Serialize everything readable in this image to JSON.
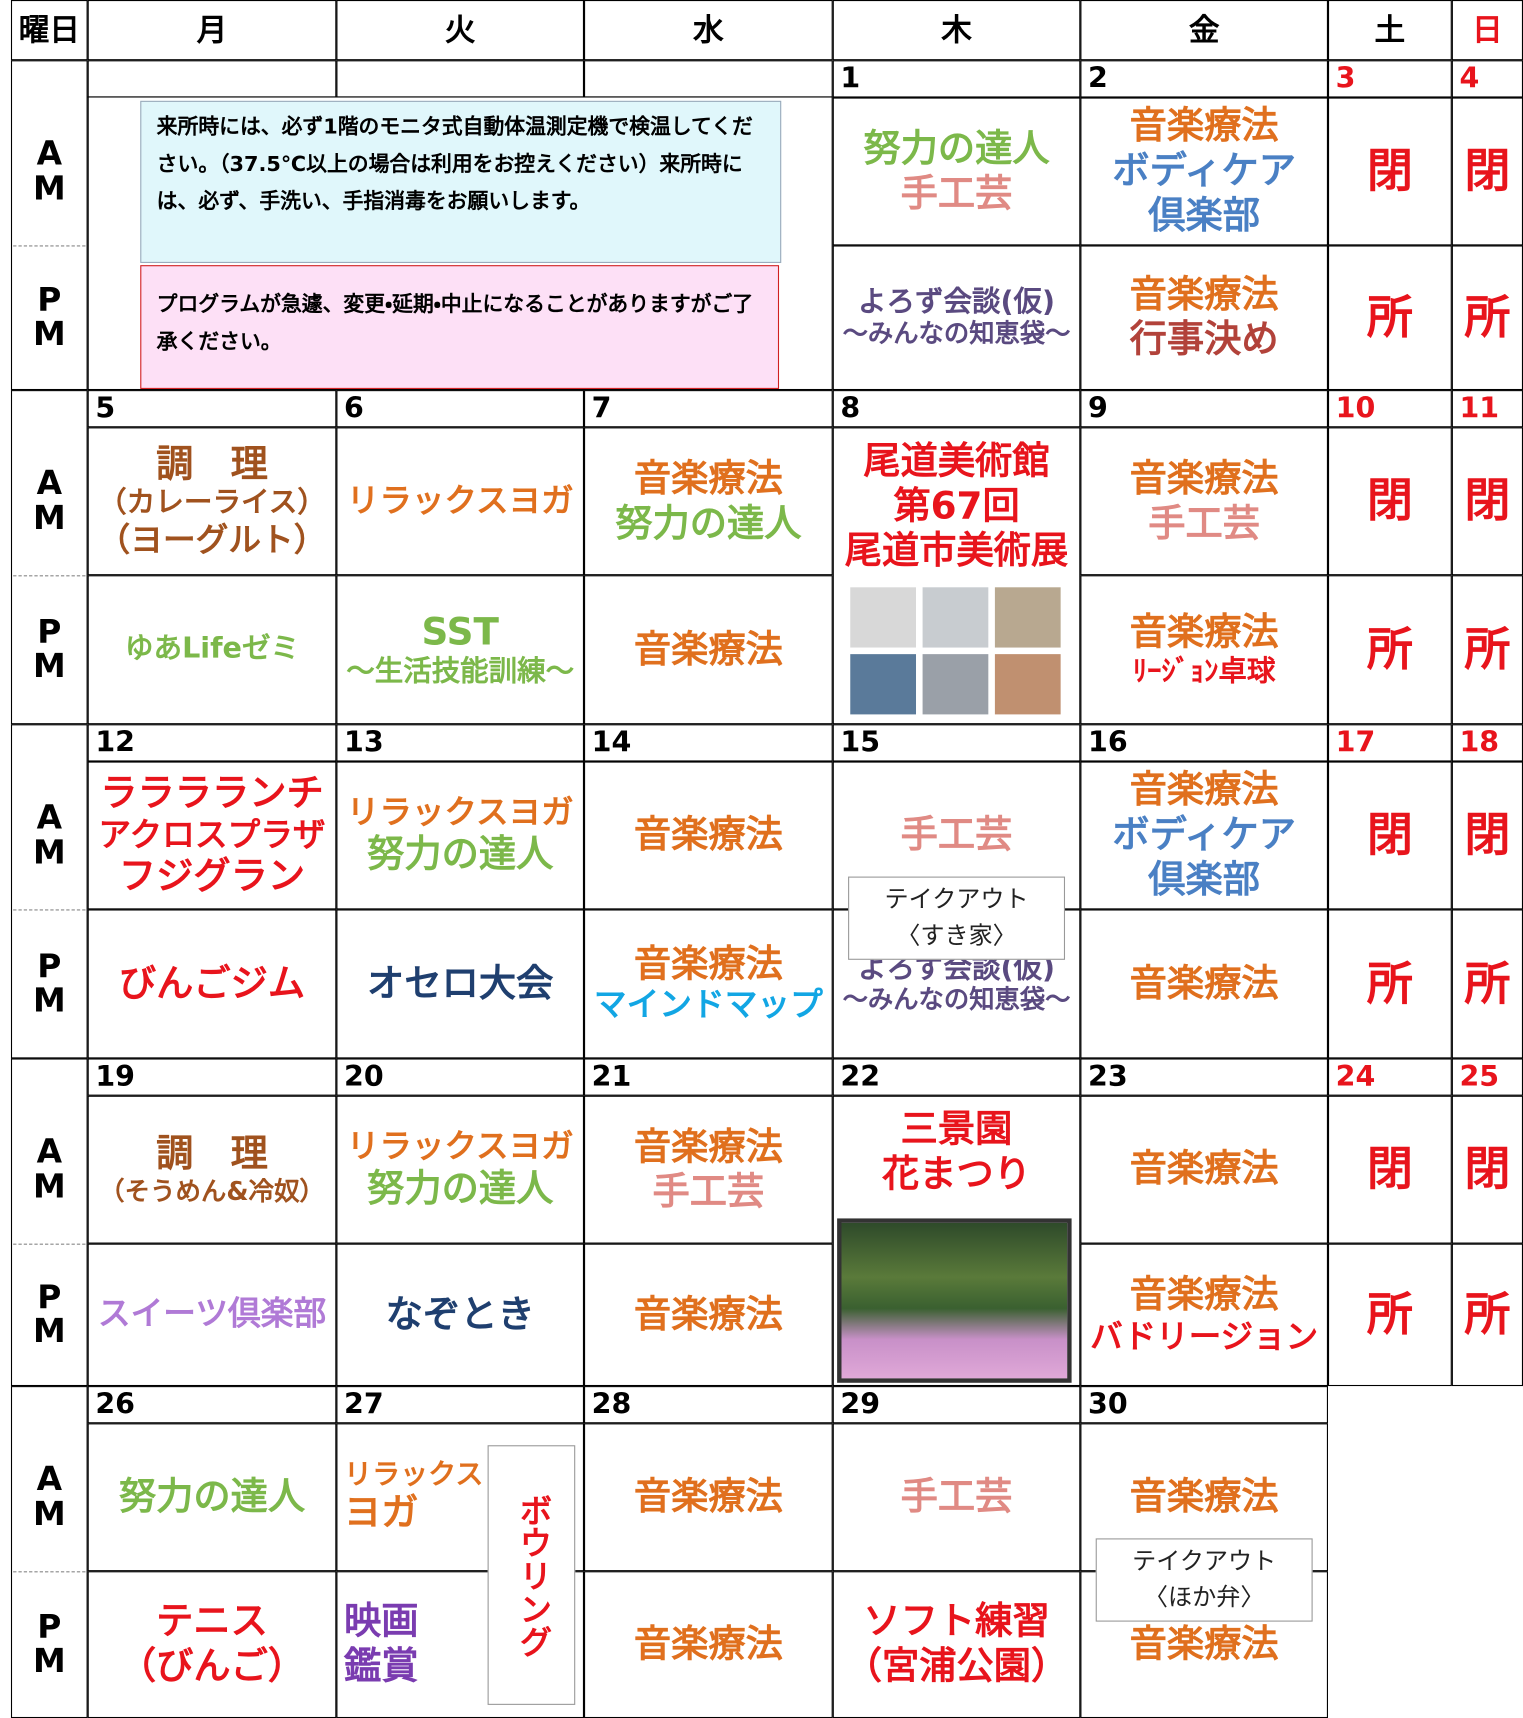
{
  "header": {
    "weekday_label": "曜日",
    "days": [
      "月",
      "火",
      "水",
      "木",
      "金",
      "土",
      "日"
    ]
  },
  "am_label": [
    "A",
    "M"
  ],
  "pm_label": [
    "P",
    "M"
  ],
  "notices": [
    "来所時には、必ず1階のモニタ式自動体温測定機で検温してください。（37.5℃以上の場合は利用をお控えください）来所時には、必ず、手洗い、手指消毒をお願いします。",
    "プログラムが急遽、変更・延期・中止になることがありますがご了承ください。"
  ],
  "weeks": [
    {
      "dates": [
        null,
        null,
        null,
        "1",
        "2",
        "3",
        "4"
      ],
      "am": [
        null,
        null,
        null,
        {
          "lines": [
            {
              "text": "努力の達人",
              "color": "#7cb84a"
            },
            {
              "text": "手工芸",
              "color": "#e08a84"
            }
          ]
        },
        {
          "lines": [
            {
              "text": "音楽療法",
              "color": "#e0701e"
            },
            {
              "text": "ボディケア",
              "color": "#4a80c4"
            },
            {
              "text": "倶楽部",
              "color": "#4a80c4"
            }
          ]
        },
        {
          "lines": [
            {
              "text": "閉",
              "color": "#e8141c"
            }
          ]
        },
        {
          "lines": [
            {
              "text": "閉",
              "color": "#e8141c"
            }
          ]
        }
      ],
      "pm": [
        null,
        null,
        null,
        {
          "lines": [
            {
              "text": "よろず会談(仮)",
              "color": "#5a4a80"
            },
            {
              "text": "〜みんなの知恵袋〜",
              "color": "#5a4a80"
            }
          ]
        },
        {
          "lines": [
            {
              "text": "音楽療法",
              "color": "#e0701e"
            },
            {
              "text": "行事決め",
              "color": "#b2423a"
            }
          ]
        },
        {
          "lines": [
            {
              "text": "所",
              "color": "#e8141c"
            }
          ]
        },
        {
          "lines": [
            {
              "text": "所",
              "color": "#e8141c"
            }
          ]
        }
      ]
    },
    {
      "dates": [
        "5",
        "6",
        "7",
        "8",
        "9",
        "10",
        "11"
      ],
      "am": [
        {
          "lines": [
            {
              "text": "調　理",
              "color": "#a0521e"
            },
            {
              "text": "（カレーライス）",
              "color": "#a0521e"
            },
            {
              "text": "（ヨーグルト）",
              "color": "#a0521e"
            }
          ]
        },
        {
          "lines": [
            {
              "text": "リラックスヨガ",
              "color": "#e0701e"
            }
          ]
        },
        {
          "lines": [
            {
              "text": "音楽療法",
              "color": "#e0701e"
            },
            {
              "text": "努力の達人",
              "color": "#7cb84a"
            }
          ]
        },
        {
          "lines": [
            {
              "text": "尾道美術館",
              "color": "#e8141c"
            },
            {
              "text": "第67回",
              "color": "#e8141c"
            },
            {
              "text": "尾道市美術展",
              "color": "#e8141c"
            }
          ]
        },
        {
          "lines": [
            {
              "text": "音楽療法",
              "color": "#e0701e"
            },
            {
              "text": "手工芸",
              "color": "#e08a84"
            }
          ]
        },
        {
          "lines": [
            {
              "text": "閉",
              "color": "#e8141c"
            }
          ]
        },
        {
          "lines": [
            {
              "text": "閉",
              "color": "#e8141c"
            }
          ]
        }
      ],
      "pm": [
        {
          "lines": [
            {
              "text": "ゆあLifeゼミ",
              "color": "#7cb84a"
            }
          ]
        },
        {
          "lines": [
            {
              "text": "SST",
              "color": "#7cb84a"
            },
            {
              "text": "〜生活技能訓練〜",
              "color": "#7cb84a"
            }
          ]
        },
        {
          "lines": [
            {
              "text": "音楽療法",
              "color": "#e0701e"
            }
          ]
        },
        null,
        {
          "lines": [
            {
              "text": "音楽療法",
              "color": "#e0701e"
            },
            {
              "text": "ﾘｰｼﾞｮﾝ卓球",
              "color": "#e8141c"
            }
          ]
        },
        {
          "lines": [
            {
              "text": "所",
              "color": "#e8141c"
            }
          ]
        },
        {
          "lines": [
            {
              "text": "所",
              "color": "#e8141c"
            }
          ]
        }
      ]
    },
    {
      "dates": [
        "12",
        "13",
        "14",
        "15",
        "16",
        "17",
        "18"
      ],
      "am": [
        {
          "lines": [
            {
              "text": "ラララランチ",
              "color": "#e8141c"
            },
            {
              "text": "アクロスプラザ",
              "color": "#e8141c"
            },
            {
              "text": "フジグラン",
              "color": "#e8141c"
            }
          ]
        },
        {
          "lines": [
            {
              "text": "リラックスヨガ",
              "color": "#e0701e"
            },
            {
              "text": "努力の達人",
              "color": "#7cb84a"
            }
          ]
        },
        {
          "lines": [
            {
              "text": "音楽療法",
              "color": "#e0701e"
            }
          ]
        },
        {
          "lines": [
            {
              "text": "手工芸",
              "color": "#e08a84"
            }
          ],
          "takeaway": [
            "テイクアウト",
            "〈すき家〉"
          ]
        },
        {
          "lines": [
            {
              "text": "音楽療法",
              "color": "#e0701e"
            },
            {
              "text": "ボディケア",
              "color": "#4a80c4"
            },
            {
              "text": "倶楽部",
              "color": "#4a80c4"
            }
          ]
        },
        {
          "lines": [
            {
              "text": "閉",
              "color": "#e8141c"
            }
          ]
        },
        {
          "lines": [
            {
              "text": "閉",
              "color": "#e8141c"
            }
          ]
        }
      ],
      "pm": [
        {
          "lines": [
            {
              "text": "びんごジム",
              "color": "#e8141c"
            }
          ]
        },
        {
          "lines": [
            {
              "text": "オセロ大会",
              "color": "#1f3f6f"
            }
          ]
        },
        {
          "lines": [
            {
              "text": "音楽療法",
              "color": "#e0701e"
            },
            {
              "text": "マインドマップ",
              "color": "#12a6e4"
            }
          ]
        },
        {
          "lines": [
            {
              "text": "よろず会談(仮)",
              "color": "#5a4a80"
            },
            {
              "text": "〜みんなの知恵袋〜",
              "color": "#5a4a80"
            }
          ]
        },
        {
          "lines": [
            {
              "text": "音楽療法",
              "color": "#e0701e"
            }
          ]
        },
        {
          "lines": [
            {
              "text": "所",
              "color": "#e8141c"
            }
          ]
        },
        {
          "lines": [
            {
              "text": "所",
              "color": "#e8141c"
            }
          ]
        }
      ]
    },
    {
      "dates": [
        "19",
        "20",
        "21",
        "22",
        "23",
        "24",
        "25"
      ],
      "am": [
        {
          "lines": [
            {
              "text": "調　理",
              "color": "#a0521e"
            },
            {
              "text": "（そうめん&冷奴）",
              "color": "#a0521e"
            }
          ]
        },
        {
          "lines": [
            {
              "text": "リラックスヨガ",
              "color": "#e0701e"
            },
            {
              "text": "努力の達人",
              "color": "#7cb84a"
            }
          ]
        },
        {
          "lines": [
            {
              "text": "音楽療法",
              "color": "#e0701e"
            },
            {
              "text": "手工芸",
              "color": "#e08a84"
            }
          ]
        },
        {
          "lines": [
            {
              "text": "三景園",
              "color": "#e8141c"
            },
            {
              "text": "花まつり",
              "color": "#e8141c"
            }
          ]
        },
        {
          "lines": [
            {
              "text": "音楽療法",
              "color": "#e0701e"
            }
          ]
        },
        {
          "lines": [
            {
              "text": "閉",
              "color": "#e8141c"
            }
          ]
        },
        {
          "lines": [
            {
              "text": "閉",
              "color": "#e8141c"
            }
          ]
        }
      ],
      "pm": [
        {
          "lines": [
            {
              "text": "スイーツ倶楽部",
              "color": "#b07ad6"
            }
          ]
        },
        {
          "lines": [
            {
              "text": "なぞとき",
              "color": "#1f3f6f"
            }
          ]
        },
        {
          "lines": [
            {
              "text": "音楽療法",
              "color": "#e0701e"
            }
          ]
        },
        null,
        {
          "lines": [
            {
              "text": "音楽療法",
              "color": "#e0701e"
            },
            {
              "text": "バドリージョン",
              "color": "#e8141c"
            }
          ]
        },
        {
          "lines": [
            {
              "text": "所",
              "color": "#e8141c"
            }
          ]
        },
        {
          "lines": [
            {
              "text": "所",
              "color": "#e8141c"
            }
          ]
        }
      ]
    },
    {
      "dates": [
        "26",
        "27",
        "28",
        "29",
        "30",
        null,
        null
      ],
      "am": [
        {
          "lines": [
            {
              "text": "努力の達人",
              "color": "#7cb84a"
            }
          ]
        },
        {
          "lines": [
            {
              "text": "リラックス",
              "color": "#e0701e"
            },
            {
              "text": "ヨガ",
              "color": "#e0701e"
            }
          ],
          "bowling": "ボウリング"
        },
        {
          "lines": [
            {
              "text": "音楽療法",
              "color": "#e0701e"
            }
          ]
        },
        {
          "lines": [
            {
              "text": "手工芸",
              "color": "#e08a84"
            }
          ]
        },
        {
          "lines": [
            {
              "text": "音楽療法",
              "color": "#e0701e"
            }
          ],
          "takeaway": [
            "テイクアウト",
            "〈ほか弁〉"
          ]
        },
        null,
        null
      ],
      "pm": [
        {
          "lines": [
            {
              "text": "テニス",
              "color": "#e8141c"
            },
            {
              "text": "（びんご）",
              "color": "#e8141c"
            }
          ]
        },
        {
          "lines": [
            {
              "text": "映画",
              "color": "#7a3cb0"
            },
            {
              "text": "鑑賞",
              "color": "#7a3cb0"
            }
          ]
        },
        {
          "lines": [
            {
              "text": "音楽療法",
              "color": "#e0701e"
            }
          ]
        },
        {
          "lines": [
            {
              "text": "ソフト練習",
              "color": "#e8141c"
            },
            {
              "text": "（宮浦公園）",
              "color": "#e8141c"
            }
          ]
        },
        {
          "lines": [
            {
              "text": "音楽療法",
              "color": "#e0701e"
            }
          ]
        },
        null,
        null
      ]
    }
  ]
}
